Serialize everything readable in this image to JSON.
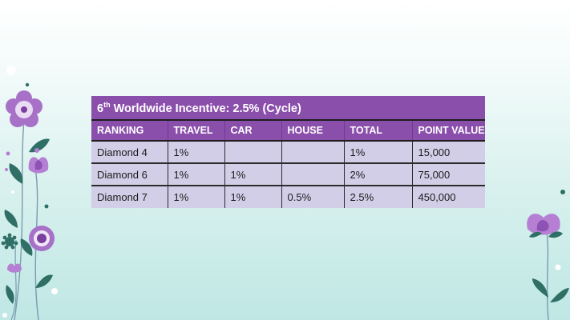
{
  "slide": {
    "background": "#dbf2ef",
    "accent": "#8a4fab",
    "row_fill": "#d3cee8",
    "decoration": "left-and-right-purple-flower-vines"
  },
  "table": {
    "title_prefix": "6",
    "title_sup": "th",
    "title_rest": " Worldwide Incentive: 2.5% (Cycle)",
    "headers": [
      "RANKING",
      "TRAVEL",
      "CAR",
      "HOUSE",
      "TOTAL",
      "POINT VALUE"
    ],
    "rows": [
      [
        "Diamond  4",
        "1%",
        "",
        "",
        "1%",
        "15,000"
      ],
      [
        "Diamond 6",
        "1%",
        "1%",
        "",
        "2%",
        "75,000"
      ],
      [
        "Diamond 7",
        "1%",
        "1%",
        "0.5%",
        "2.5%",
        "450,000"
      ]
    ]
  }
}
